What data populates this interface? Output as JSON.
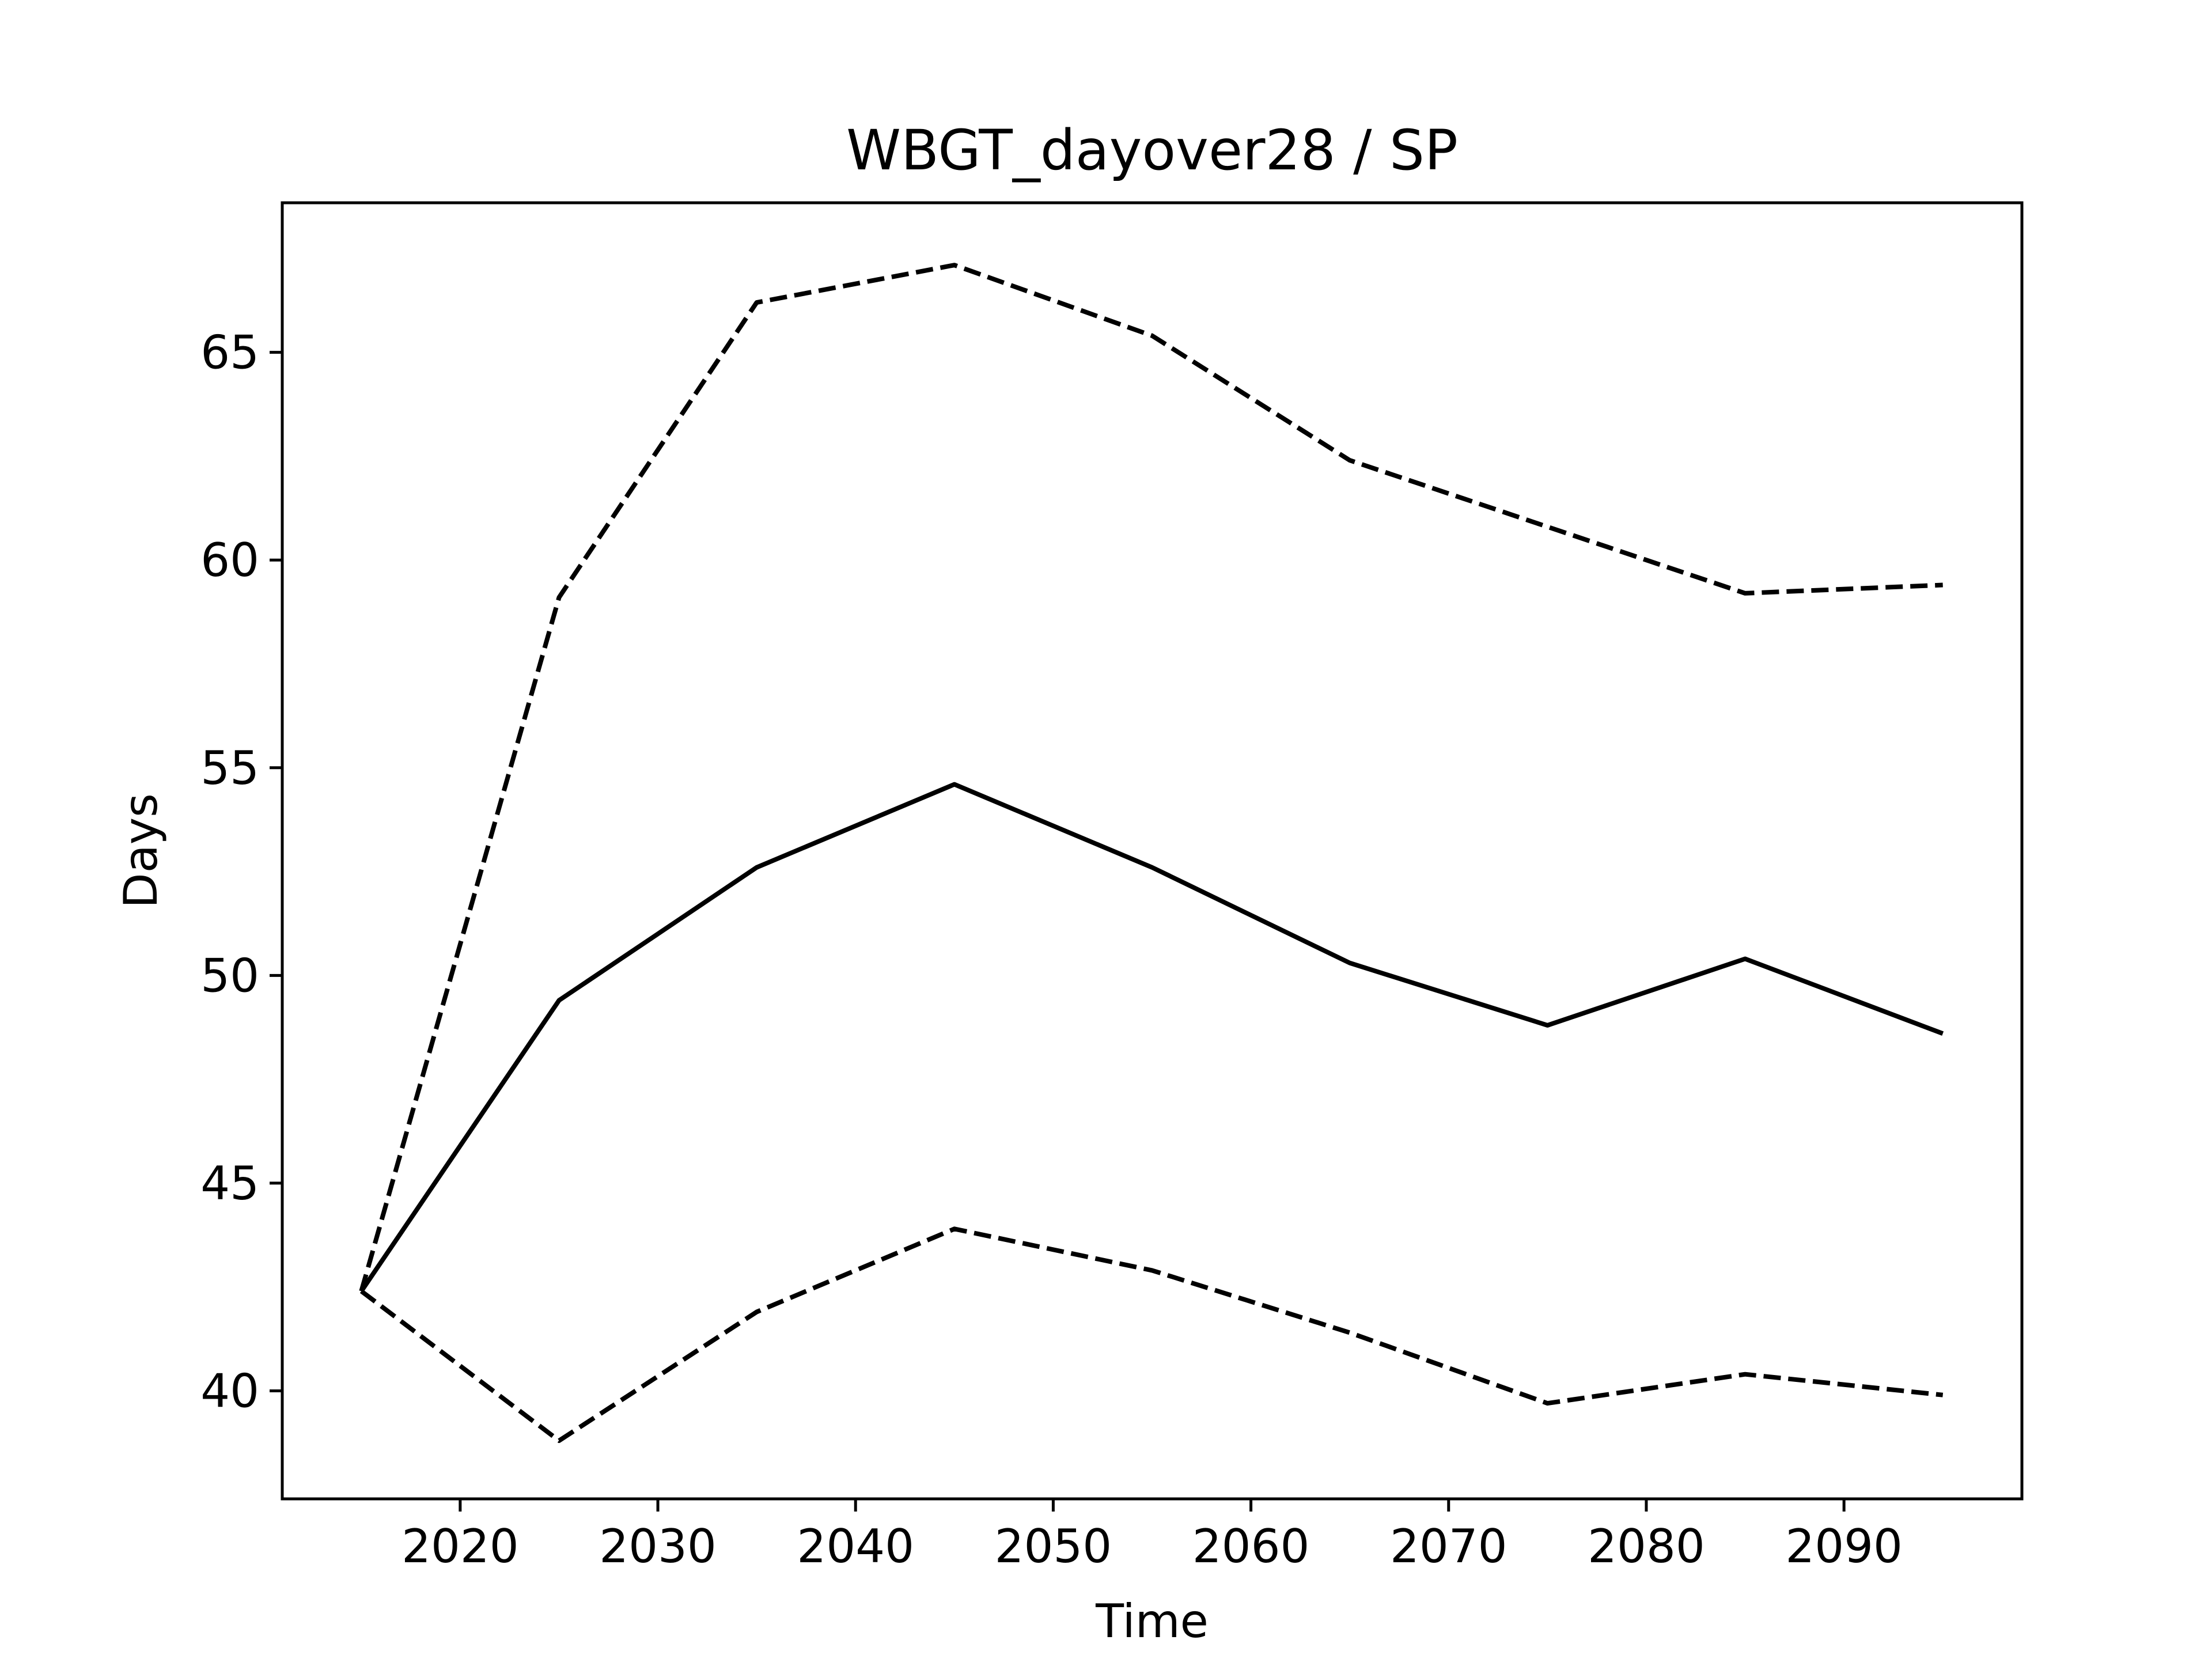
{
  "chart_data": {
    "type": "line",
    "title": "WBGT_dayover28 / SP",
    "xlabel": "Time",
    "ylabel": "Days",
    "x": [
      2015,
      2025,
      2035,
      2045,
      2055,
      2065,
      2075,
      2085,
      2095
    ],
    "xlim": [
      2011,
      2099
    ],
    "ylim": [
      37.4,
      68.6
    ],
    "xticks": [
      2020,
      2030,
      2040,
      2050,
      2060,
      2070,
      2080,
      2090
    ],
    "yticks": [
      40,
      45,
      50,
      55,
      60,
      65
    ],
    "grid": false,
    "legend": "none",
    "series": [
      {
        "style": "dashed",
        "color": "#000000",
        "values": [
          42.4,
          59.1,
          66.2,
          67.1,
          65.4,
          62.4,
          60.8,
          59.2,
          59.4
        ]
      },
      {
        "style": "solid",
        "color": "#000000",
        "values": [
          42.4,
          49.4,
          52.6,
          54.6,
          52.6,
          50.3,
          48.8,
          50.4,
          48.6
        ]
      },
      {
        "style": "dashed",
        "color": "#000000",
        "values": [
          42.4,
          38.8,
          41.9,
          43.9,
          42.9,
          41.4,
          39.7,
          40.4,
          39.9
        ]
      }
    ]
  }
}
